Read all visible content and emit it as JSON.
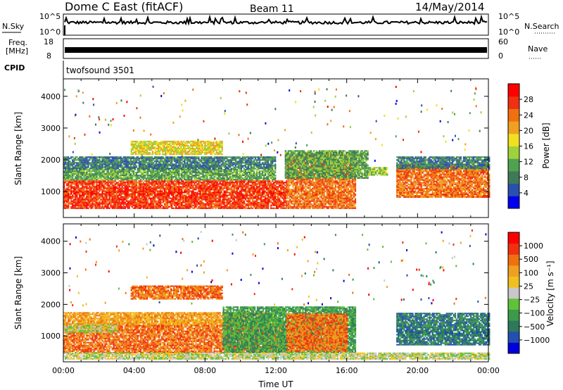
{
  "header": {
    "station": "Dome C East (fitACF)",
    "beam": "Beam 11",
    "date": "14/May/2014"
  },
  "top_panels": {
    "nsky_label": "N.Sky",
    "nsky_ticks": [
      "10^5",
      "10^0"
    ],
    "nsearch_label": "N.Search",
    "nsearch_ticks": [
      "10^5",
      "10^0"
    ],
    "freq_label": "Freq.",
    "freq_unit": "[MHz]",
    "freq_ticks": [
      "18",
      "8"
    ],
    "nave_label": "Nave",
    "nave_ticks": [
      "60",
      "0"
    ],
    "cpid_label": "CPID",
    "cpid_value": "twofsound 3501"
  },
  "colors": {
    "power": [
      "#0000ee",
      "#2a4fb0",
      "#3f7a58",
      "#4fa24f",
      "#9fd23a",
      "#f0e020",
      "#f0a020",
      "#f07010",
      "#f03010",
      "#ff0000"
    ],
    "velocity": [
      "#0000dd",
      "#224fb0",
      "#2c7a5a",
      "#3c9a4a",
      "#5fc23a",
      "#c8c8c8",
      "#f0c020",
      "#f0a020",
      "#f07010",
      "#f03010",
      "#ff0000"
    ]
  },
  "chart_data": [
    {
      "type": "heatmap",
      "name": "power-panel",
      "ylabel": "Slant Range [km]",
      "yticks": [
        1000,
        2000,
        3000,
        4000
      ],
      "ylim": [
        180,
        4550
      ],
      "xlim": [
        0,
        24
      ],
      "colorbar": {
        "label": "Power [dB]",
        "ticks": [
          "28",
          "24",
          "20",
          "16",
          "12",
          "8",
          "4"
        ],
        "range": [
          0,
          32
        ]
      },
      "bands": [
        {
          "t0": 0.0,
          "t1": 12.6,
          "r0": 450,
          "r1": 1350,
          "level": 28
        },
        {
          "t0": 0.0,
          "t1": 12.0,
          "r0": 1350,
          "r1": 1700,
          "level": 12
        },
        {
          "t0": 0.0,
          "t1": 12.0,
          "r0": 1700,
          "r1": 2100,
          "level": 8
        },
        {
          "t0": 3.8,
          "t1": 9.0,
          "r0": 2150,
          "r1": 2600,
          "level": 18
        },
        {
          "t0": 12.6,
          "t1": 16.5,
          "r0": 450,
          "r1": 2200,
          "level": 26
        },
        {
          "t0": 12.5,
          "t1": 17.2,
          "r0": 1400,
          "r1": 2300,
          "level": 10
        },
        {
          "t0": 17.2,
          "t1": 18.3,
          "r0": 1500,
          "r1": 1750,
          "level": 14
        },
        {
          "t0": 18.8,
          "t1": 24.0,
          "r0": 800,
          "r1": 1800,
          "level": 26
        },
        {
          "t0": 18.8,
          "t1": 24.0,
          "r0": 1700,
          "r1": 2100,
          "level": 8
        }
      ]
    },
    {
      "type": "heatmap",
      "name": "velocity-panel",
      "ylabel": "Slant Range [km]",
      "yticks": [
        1000,
        2000,
        3000,
        4000
      ],
      "ylim": [
        180,
        4550
      ],
      "xlim": [
        0,
        24
      ],
      "xlabel": "Time UT",
      "xticks": [
        "00:00",
        "04:00",
        "08:00",
        "12:00",
        "16:00",
        "20:00",
        "00:00"
      ],
      "colorbar": {
        "label": "Velocity [m s⁻¹]",
        "ticks": [
          "1000",
          "500",
          "100",
          "25",
          "−25",
          "−100",
          "−500",
          "−1000"
        ]
      },
      "bands": [
        {
          "t0": 0.0,
          "t1": 12.6,
          "r0": 450,
          "r1": 1350,
          "level": 8
        },
        {
          "t0": 0.0,
          "t1": 3.0,
          "r0": 1100,
          "r1": 1400,
          "level": 5
        },
        {
          "t0": 0.0,
          "t1": 12.0,
          "r0": 1350,
          "r1": 1750,
          "level": 7
        },
        {
          "t0": 3.8,
          "t1": 9.0,
          "r0": 2150,
          "r1": 2600,
          "level": 8
        },
        {
          "t0": 9.0,
          "t1": 16.5,
          "r0": 450,
          "r1": 1900,
          "level": 3
        },
        {
          "t0": 12.6,
          "t1": 16.0,
          "r0": 500,
          "r1": 1700,
          "level": 8
        },
        {
          "t0": 18.8,
          "t1": 24.0,
          "r0": 700,
          "r1": 1700,
          "level": 2
        },
        {
          "t0": 0.0,
          "t1": 24.0,
          "r0": 250,
          "r1": 450,
          "level": 5
        }
      ]
    }
  ]
}
